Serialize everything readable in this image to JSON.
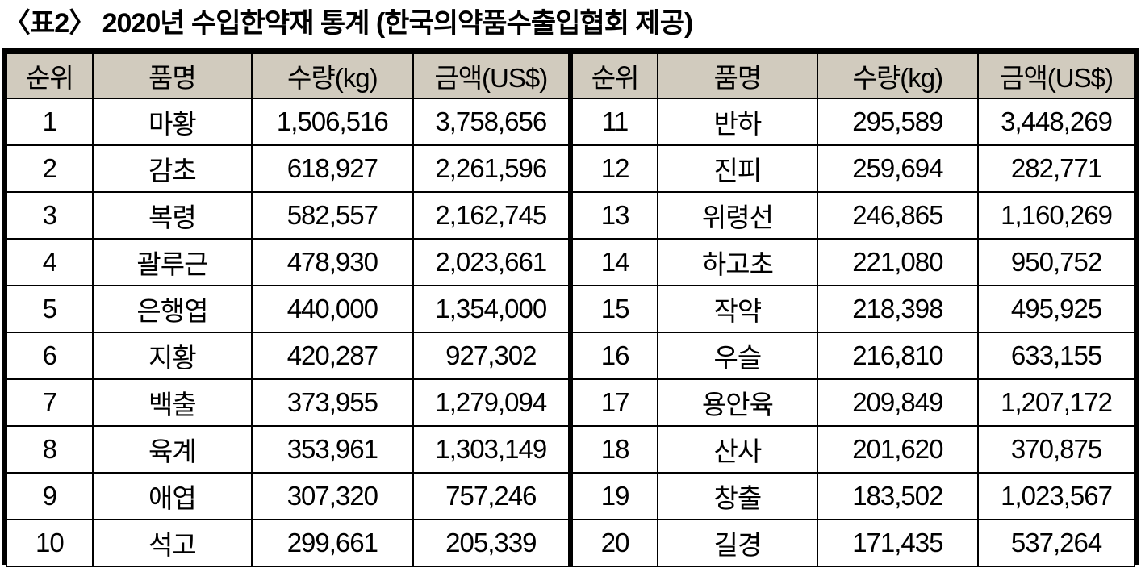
{
  "title": "〈표2〉 2020년 수입한약재 통계 (한국의약품수출입협회 제공)",
  "colors": {
    "header_bg": "#d1cbbe",
    "border": "#000000",
    "text": "#000000"
  },
  "table": {
    "headers": [
      "순위",
      "품명",
      "수량(kg)",
      "금액(US$)"
    ],
    "left_rows": [
      [
        "1",
        "마황",
        "1,506,516",
        "3,758,656"
      ],
      [
        "2",
        "감초",
        "618,927",
        "2,261,596"
      ],
      [
        "3",
        "복령",
        "582,557",
        "2,162,745"
      ],
      [
        "4",
        "괄루근",
        "478,930",
        "2,023,661"
      ],
      [
        "5",
        "은행엽",
        "440,000",
        "1,354,000"
      ],
      [
        "6",
        "지황",
        "420,287",
        "927,302"
      ],
      [
        "7",
        "백출",
        "373,955",
        "1,279,094"
      ],
      [
        "8",
        "육계",
        "353,961",
        "1,303,149"
      ],
      [
        "9",
        "애엽",
        "307,320",
        "757,246"
      ],
      [
        "10",
        "석고",
        "299,661",
        "205,339"
      ]
    ],
    "right_rows": [
      [
        "11",
        "반하",
        "295,589",
        "3,448,269"
      ],
      [
        "12",
        "진피",
        "259,694",
        "282,771"
      ],
      [
        "13",
        "위령선",
        "246,865",
        "1,160,269"
      ],
      [
        "14",
        "하고초",
        "221,080",
        "950,752"
      ],
      [
        "15",
        "작약",
        "218,398",
        "495,925"
      ],
      [
        "16",
        "우슬",
        "216,810",
        "633,155"
      ],
      [
        "17",
        "용안육",
        "209,849",
        "1,207,172"
      ],
      [
        "18",
        "산사",
        "201,620",
        "370,875"
      ],
      [
        "19",
        "창출",
        "183,502",
        "1,023,567"
      ],
      [
        "20",
        "길경",
        "171,435",
        "537,264"
      ]
    ]
  }
}
